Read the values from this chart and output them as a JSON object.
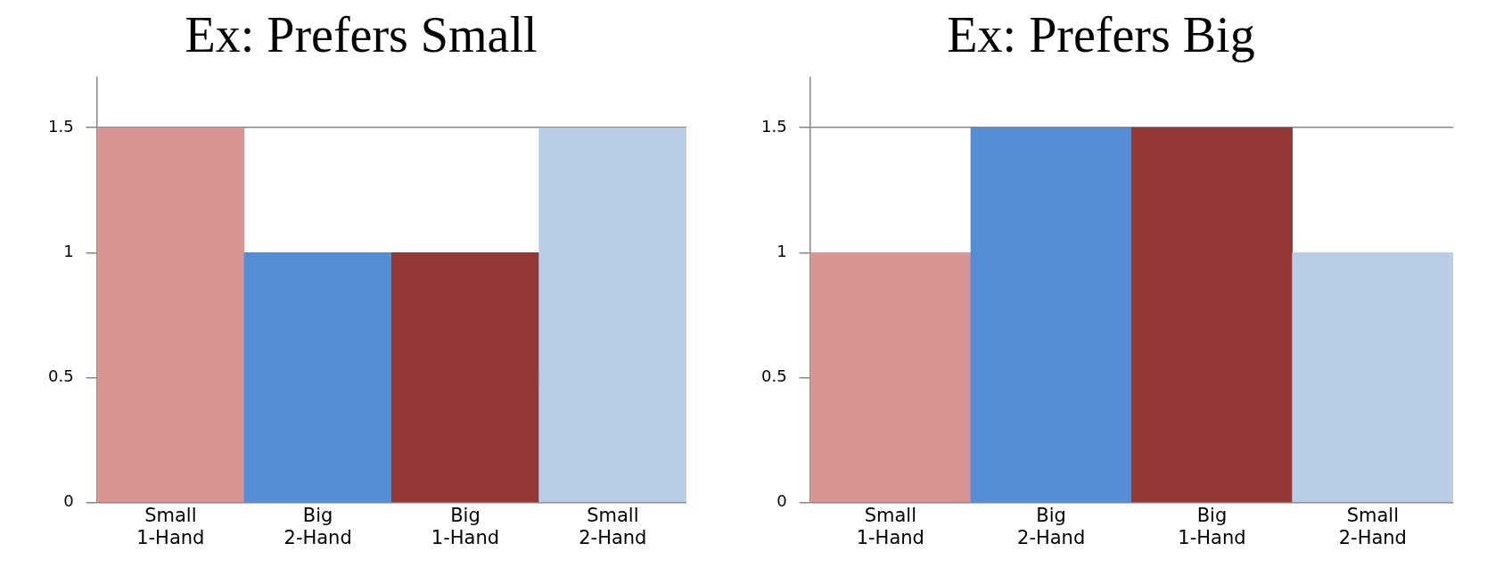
{
  "chart_data": [
    {
      "type": "bar",
      "title": "Ex: Prefers Small",
      "categories": [
        "Small\n1-Hand",
        "Big\n2-Hand",
        "Big\n1-Hand",
        "Small\n2-Hand"
      ],
      "values": [
        1.5,
        1,
        1,
        1.5
      ],
      "colors": [
        "#d99594",
        "#558ed5",
        "#953735",
        "#b9cde5"
      ],
      "ylim": [
        0,
        1.7
      ],
      "yticks": [
        0,
        0.5,
        1,
        1.5
      ],
      "grid": "y",
      "legend": false
    },
    {
      "type": "bar",
      "title": "Ex: Prefers Big",
      "categories": [
        "Small\n1-Hand",
        "Big\n2-Hand",
        "Big\n1-Hand",
        "Small\n2-Hand"
      ],
      "values": [
        1,
        1.5,
        1.5,
        1
      ],
      "colors": [
        "#d99594",
        "#558ed5",
        "#953735",
        "#b9cde5"
      ],
      "ylim": [
        0,
        1.7
      ],
      "yticks": [
        0,
        0.5,
        1,
        1.5
      ],
      "grid": "y",
      "legend": false
    }
  ]
}
